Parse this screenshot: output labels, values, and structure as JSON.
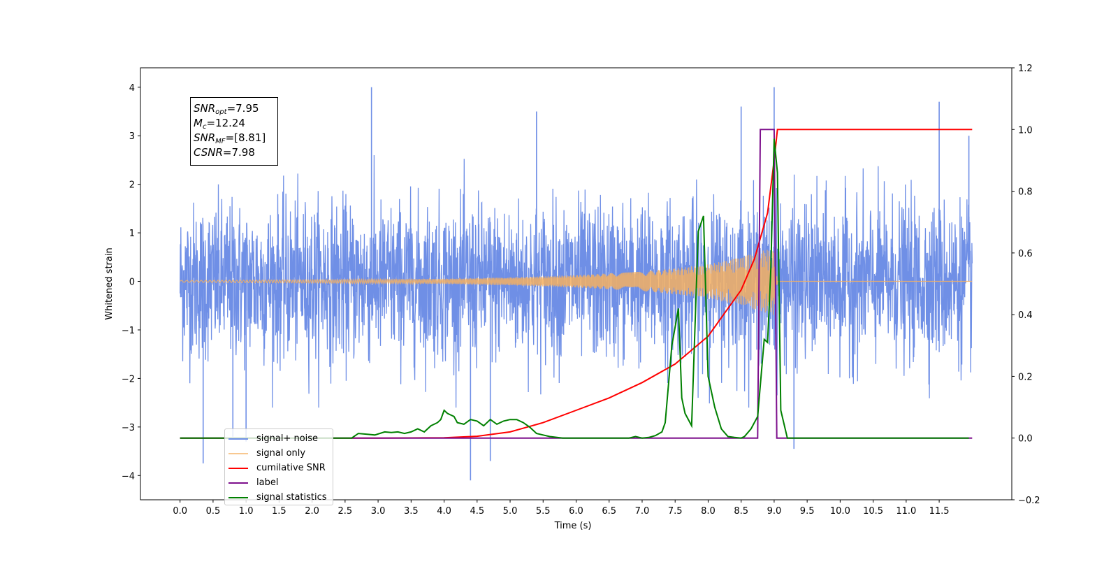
{
  "chart_data": {
    "type": "line",
    "xlabel": "Time (s)",
    "ylabel": "Whitened strain",
    "xlim": [
      -0.6,
      12.6
    ],
    "ylim": [
      -4.5,
      4.4
    ],
    "y2lim": [
      -0.2,
      1.2
    ],
    "x_ticks": [
      "0.0",
      "0.5",
      "1.0",
      "1.5",
      "2.0",
      "2.5",
      "3.0",
      "3.5",
      "4.0",
      "4.5",
      "5.0",
      "5.5",
      "6.0",
      "6.5",
      "7.0",
      "7.5",
      "8.0",
      "8.5",
      "9.0",
      "9.5",
      "10.0",
      "10.5",
      "11.0",
      "11.5"
    ],
    "y_ticks": [
      "4",
      "3",
      "2",
      "1",
      "0",
      "−1",
      "−2",
      "−3",
      "−4"
    ],
    "y2_ticks": [
      "1.2",
      "1.0",
      "0.8",
      "0.6",
      "0.4",
      "0.2",
      "0.0",
      "−0.2"
    ],
    "grid": false,
    "legend_position": "lower-left",
    "annotation": {
      "snr_opt": "=7.95",
      "mc": "=12.24",
      "snr_mf": "=[8.81]",
      "csnr": "=7.98"
    },
    "series": [
      {
        "name": "signal+ noise",
        "color": "#6f8fe6",
        "axis": "left",
        "description_values": "Whitened noise band roughly ±2 to ±2.5 with spikes up to 4.0 (t≈2.9, 9.0) and down to −4.1 (t≈4.4)",
        "spikes_x": [
          0.35,
          0.8,
          1.0,
          2.9,
          4.4,
          4.7,
          5.4,
          8.5,
          9.0,
          9.3,
          11.5,
          11.95
        ],
        "spikes_y": [
          -3.75,
          -3.2,
          -3.3,
          4.0,
          -4.1,
          -3.7,
          3.5,
          3.6,
          4.0,
          -3.45,
          3.7,
          3.0
        ]
      },
      {
        "name": "signal only",
        "color": "#f5b061",
        "axis": "left",
        "x": [
          0,
          4,
          5,
          6,
          7,
          7.5,
          8,
          8.5,
          8.8,
          9.0,
          9.05,
          12
        ],
        "amplitude": [
          0.02,
          0.05,
          0.08,
          0.13,
          0.2,
          0.27,
          0.35,
          0.5,
          0.62,
          0.7,
          0,
          0
        ]
      },
      {
        "name": "cumilative SNR",
        "color": "#ff0000",
        "axis": "right",
        "x": [
          0,
          3,
          4,
          4.5,
          5,
          5.5,
          6,
          6.5,
          7,
          7.5,
          8,
          8.5,
          8.7,
          8.9,
          9.0,
          9.05,
          12
        ],
        "y": [
          0,
          0,
          0.001,
          0.006,
          0.02,
          0.05,
          0.09,
          0.13,
          0.18,
          0.24,
          0.33,
          0.48,
          0.58,
          0.73,
          0.9,
          1.0,
          1.0
        ]
      },
      {
        "name": "label",
        "color": "#7d0f8c",
        "axis": "right",
        "x": [
          0,
          8.75,
          8.79,
          9.0,
          9.04,
          12
        ],
        "y": [
          0,
          0,
          1,
          1,
          0,
          0
        ]
      },
      {
        "name": "signal statistics",
        "color": "#008000",
        "axis": "right",
        "x": [
          0,
          2.6,
          2.7,
          2.85,
          2.95,
          3.1,
          3.2,
          3.3,
          3.4,
          3.5,
          3.6,
          3.7,
          3.8,
          3.9,
          3.95,
          4.0,
          4.05,
          4.1,
          4.15,
          4.2,
          4.3,
          4.4,
          4.5,
          4.6,
          4.7,
          4.8,
          4.9,
          5.0,
          5.1,
          5.2,
          5.3,
          5.4,
          5.5,
          5.6,
          5.8,
          6.0,
          6.8,
          6.9,
          7.0,
          7.1,
          7.2,
          7.3,
          7.35,
          7.45,
          7.55,
          7.6,
          7.65,
          7.75,
          7.85,
          7.93,
          8.0,
          8.1,
          8.2,
          8.3,
          8.4,
          8.5,
          8.55,
          8.65,
          8.75,
          8.85,
          8.9,
          8.95,
          9.0,
          9.05,
          9.1,
          9.2,
          9.3,
          11.95
        ],
        "y": [
          0,
          0,
          0.015,
          0.012,
          0.01,
          0.02,
          0.018,
          0.02,
          0.015,
          0.02,
          0.03,
          0.02,
          0.04,
          0.05,
          0.06,
          0.09,
          0.08,
          0.075,
          0.07,
          0.05,
          0.045,
          0.06,
          0.055,
          0.04,
          0.06,
          0.045,
          0.055,
          0.06,
          0.06,
          0.05,
          0.035,
          0.015,
          0.01,
          0.005,
          0.0,
          0.0,
          0.0,
          0.005,
          0.0,
          0.002,
          0.008,
          0.02,
          0.05,
          0.3,
          0.42,
          0.13,
          0.08,
          0.04,
          0.67,
          0.72,
          0.2,
          0.1,
          0.03,
          0.005,
          0.002,
          0.0,
          0.005,
          0.03,
          0.07,
          0.32,
          0.31,
          0.55,
          0.97,
          0.86,
          0.09,
          0.0,
          0.0,
          0.0
        ]
      }
    ],
    "legend_labels": [
      "signal+ noise",
      "signal only",
      "cumilative SNR",
      "label",
      "signal statistics"
    ],
    "legend_colors": [
      "#6f8fe6",
      "#f5b061",
      "#ff0000",
      "#7d0f8c",
      "#008000"
    ]
  }
}
